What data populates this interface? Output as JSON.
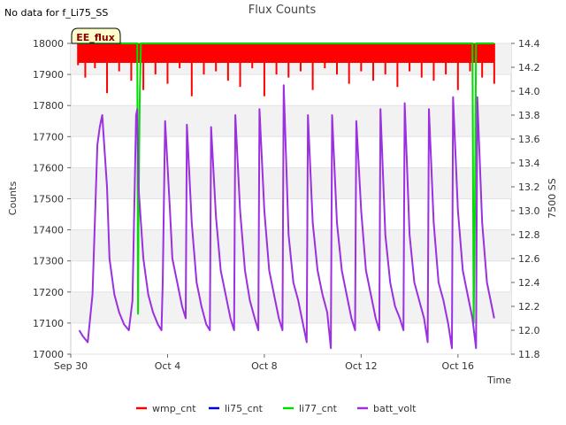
{
  "chart_data": {
    "type": "line",
    "title": "Flux Counts",
    "no_data_note": "No data for f_Li75_SS",
    "badge": "EE_flux",
    "xlabel": "Time",
    "ylabel": "Counts",
    "y2label": "7500 SS",
    "xlim": [
      0,
      18.2
    ],
    "ylim": [
      17000,
      18000
    ],
    "y2lim": [
      11.8,
      14.4
    ],
    "x_ticks": [
      {
        "value": 0,
        "label": "Sep 30"
      },
      {
        "value": 4,
        "label": "Oct 4"
      },
      {
        "value": 8,
        "label": "Oct 8"
      },
      {
        "value": 12,
        "label": "Oct 12"
      },
      {
        "value": 16,
        "label": "Oct 16"
      }
    ],
    "y_ticks": [
      17000,
      17100,
      17200,
      17300,
      17400,
      17500,
      17600,
      17700,
      17800,
      17900,
      18000
    ],
    "y2_ticks": [
      "11.8",
      "12.0",
      "12.2",
      "12.4",
      "12.6",
      "12.8",
      "13.0",
      "13.2",
      "13.4",
      "13.6",
      "13.8",
      "14.0",
      "14.2",
      "14.4"
    ],
    "grid": true,
    "legend_position": "bottom",
    "series": [
      {
        "name": "wmp_cnt",
        "axis": "left",
        "color": "#ff0000",
        "x": [
          0.3,
          0.6,
          1.0,
          1.5,
          2.0,
          2.5,
          3.0,
          3.5,
          4.0,
          4.5,
          5.0,
          5.5,
          6.0,
          6.5,
          7.0,
          7.5,
          8.0,
          8.5,
          9.0,
          9.5,
          10.0,
          10.5,
          11.0,
          11.5,
          12.0,
          12.5,
          13.0,
          13.5,
          14.0,
          14.5,
          15.0,
          15.5,
          16.0,
          16.5,
          17.0,
          17.5
        ],
        "values": [
          17930,
          17890,
          17920,
          17840,
          17910,
          17880,
          17850,
          17900,
          17870,
          17920,
          17830,
          17900,
          17910,
          17880,
          17860,
          17920,
          17830,
          17900,
          17890,
          17910,
          17850,
          17920,
          17900,
          17870,
          17910,
          17880,
          17900,
          17860,
          17910,
          17890,
          17880,
          17900,
          17850,
          17910,
          17890,
          17870
        ],
        "ceiling": 18000
      },
      {
        "name": "li75_cnt",
        "axis": "left",
        "color": "#0000cc",
        "x": [],
        "values": []
      },
      {
        "name": "li77_cnt",
        "axis": "left",
        "color": "#00dd00",
        "x": [
          0.3,
          2.75,
          2.78,
          2.8,
          2.85,
          2.9,
          16.6,
          16.65,
          16.7,
          16.75,
          17.5
        ],
        "values": [
          18000,
          18000,
          17130,
          17420,
          17830,
          18000,
          18000,
          17100,
          17450,
          18000,
          18000
        ]
      },
      {
        "name": "batt_volt",
        "axis": "right",
        "color": "#9b30e0",
        "x": [
          0.35,
          0.5,
          0.7,
          0.9,
          1.1,
          1.2,
          1.3,
          1.5,
          1.6,
          1.8,
          2.0,
          2.2,
          2.4,
          2.55,
          2.7,
          2.75,
          2.8,
          3.0,
          3.2,
          3.4,
          3.6,
          3.75,
          3.8,
          3.9,
          4.1,
          4.2,
          4.4,
          4.6,
          4.75,
          4.8,
          5.0,
          5.2,
          5.4,
          5.6,
          5.75,
          5.8,
          6.0,
          6.2,
          6.4,
          6.6,
          6.75,
          6.8,
          7.0,
          7.2,
          7.4,
          7.6,
          7.75,
          7.8,
          8.0,
          8.2,
          8.4,
          8.6,
          8.75,
          8.8,
          9.0,
          9.2,
          9.4,
          9.6,
          9.75,
          9.8,
          10.0,
          10.2,
          10.4,
          10.6,
          10.75,
          10.8,
          11.0,
          11.2,
          11.4,
          11.6,
          11.75,
          11.8,
          12.0,
          12.2,
          12.4,
          12.6,
          12.75,
          12.8,
          13.0,
          13.2,
          13.4,
          13.6,
          13.75,
          13.8,
          14.0,
          14.2,
          14.4,
          14.6,
          14.75,
          14.8,
          15.0,
          15.2,
          15.4,
          15.6,
          15.75,
          15.8,
          16.0,
          16.2,
          16.4,
          16.6,
          16.75,
          16.8,
          17.0,
          17.2,
          17.4,
          17.5
        ],
        "values": [
          12.0,
          11.95,
          11.9,
          12.3,
          13.55,
          13.7,
          13.8,
          13.2,
          12.6,
          12.3,
          12.15,
          12.05,
          12.0,
          12.25,
          13.8,
          13.85,
          13.2,
          12.6,
          12.3,
          12.15,
          12.05,
          12.0,
          12.4,
          13.75,
          13.0,
          12.6,
          12.4,
          12.2,
          12.1,
          13.72,
          12.9,
          12.4,
          12.2,
          12.05,
          12.0,
          13.7,
          12.95,
          12.5,
          12.3,
          12.1,
          12.0,
          13.8,
          13.0,
          12.5,
          12.25,
          12.1,
          12.0,
          13.85,
          13.0,
          12.5,
          12.3,
          12.1,
          12.0,
          14.05,
          12.8,
          12.4,
          12.25,
          12.05,
          11.9,
          13.8,
          12.9,
          12.5,
          12.3,
          12.15,
          11.85,
          13.8,
          12.9,
          12.5,
          12.3,
          12.1,
          12.0,
          13.75,
          13.0,
          12.5,
          12.3,
          12.1,
          12.0,
          13.85,
          12.8,
          12.4,
          12.2,
          12.1,
          12.0,
          13.9,
          12.8,
          12.4,
          12.25,
          12.1,
          11.9,
          13.85,
          12.9,
          12.4,
          12.25,
          12.05,
          11.85,
          13.95,
          13.0,
          12.5,
          12.3,
          12.1,
          11.85,
          13.95,
          12.9,
          12.4,
          12.2,
          12.1
        ]
      }
    ]
  }
}
